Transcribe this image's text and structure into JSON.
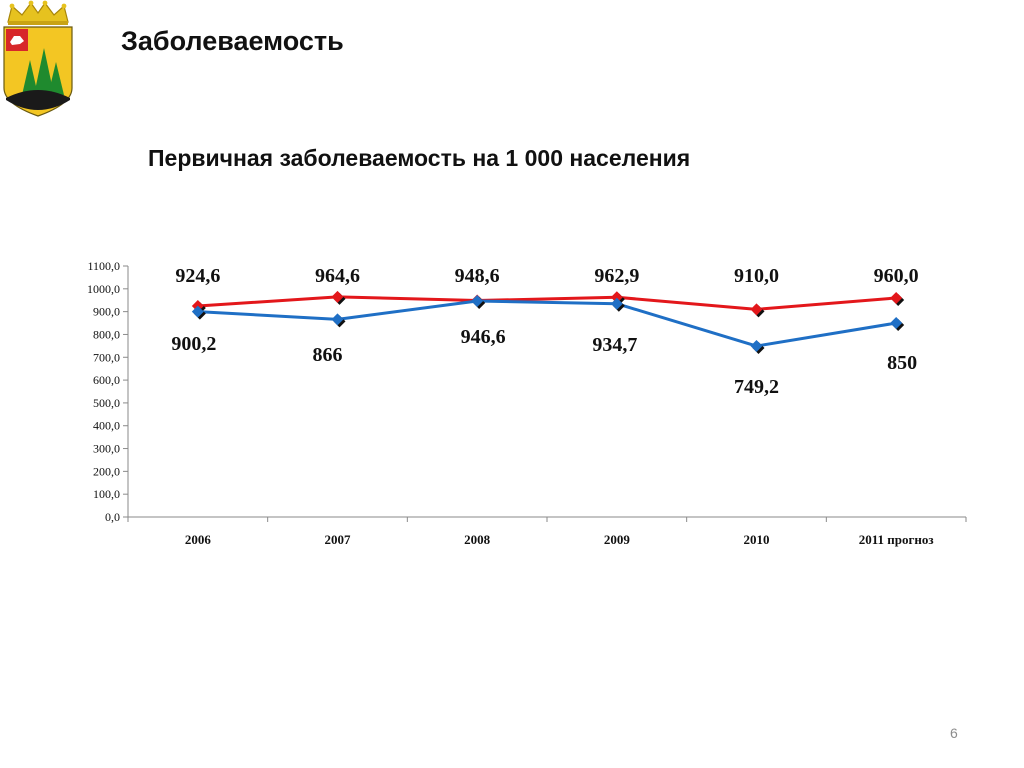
{
  "slide": {
    "title": "Заболеваемость",
    "page_number": "6",
    "emblem": "coat-of-arms-icon"
  },
  "chart_data": {
    "type": "line",
    "title": "Первичная заболеваемость на 1 000 населения",
    "categories": [
      "2006",
      "2007",
      "2008",
      "2009",
      "2010",
      "2011 прогноз"
    ],
    "ylim": [
      0,
      1100
    ],
    "yticks": [
      "0,0",
      "100,0",
      "200,0",
      "300,0",
      "400,0",
      "500,0",
      "600,0",
      "700,0",
      "800,0",
      "900,0",
      "1000,0",
      "1100,0"
    ],
    "grid": false,
    "legend": "none",
    "series": [
      {
        "color": "#e3171b",
        "values": [
          924.6,
          964.6,
          948.6,
          962.9,
          910.0,
          960.0
        ],
        "labels": [
          "924,6",
          "964,6",
          "948,6",
          "962,9",
          "910,0",
          "960,0"
        ]
      },
      {
        "color": "#1f6fc5",
        "values": [
          900.2,
          866,
          946.6,
          934.7,
          749.2,
          850
        ],
        "labels": [
          "900,2",
          "866",
          "946,6",
          "934,7",
          "749,2",
          "850"
        ]
      }
    ]
  }
}
